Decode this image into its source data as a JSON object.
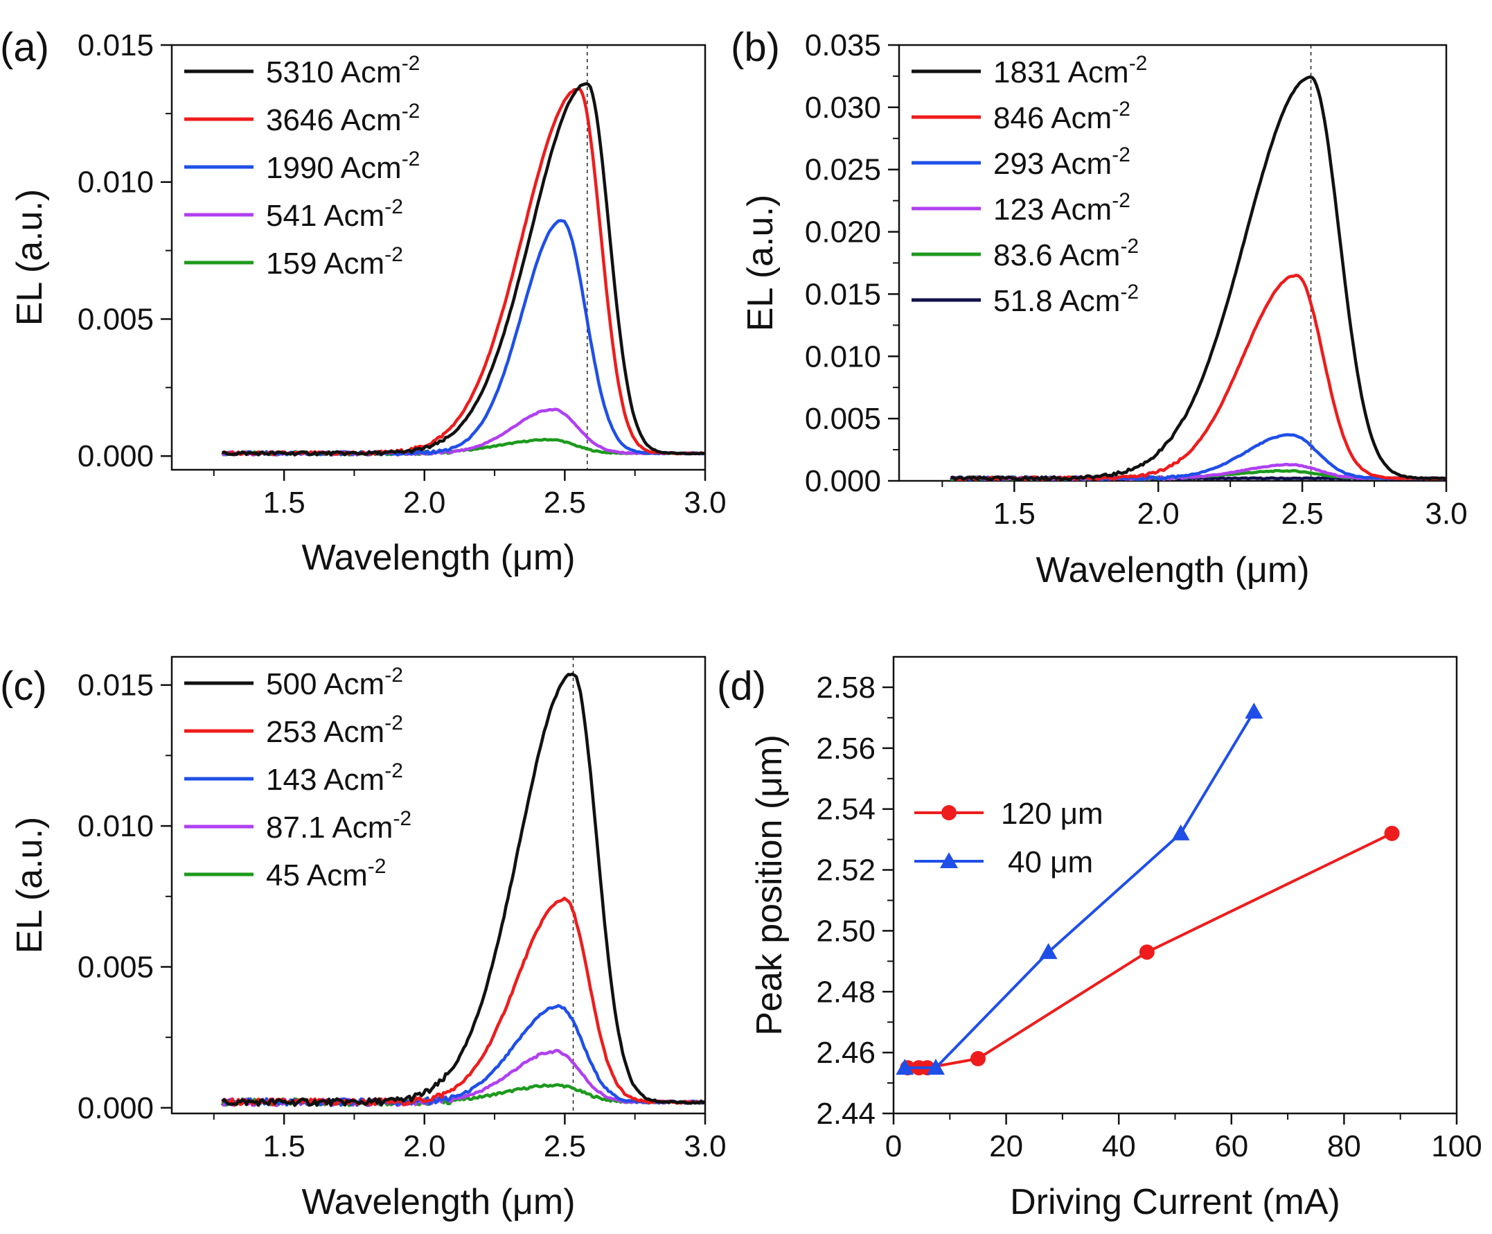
{
  "figure": {
    "colors": {
      "black": "#111111",
      "red": "#ee1c1c",
      "blue": "#1f4fe8",
      "magenta": "#b040f0",
      "green": "#1d9a1d",
      "navy": "#10104a"
    }
  },
  "chart_data": [
    {
      "panel": "(a)",
      "type": "line",
      "xlabel": "Wavelength (μm)",
      "ylabel": "EL (a.u.)",
      "xlim": [
        1.1,
        3.0
      ],
      "ylim": [
        -0.0005,
        0.015
      ],
      "xticks": [
        1.5,
        2.0,
        2.5,
        3.0
      ],
      "xtick_labels": [
        "1.5",
        "2.0",
        "2.5",
        "3.0"
      ],
      "yticks": [
        0.0,
        0.005,
        0.01,
        0.015
      ],
      "ytick_labels": [
        "0.000",
        "0.005",
        "0.010",
        "0.015"
      ],
      "peak_marker_x": 2.58,
      "legend_position": "top-left",
      "series": [
        {
          "name": "5310",
          "unit": " Acm",
          "exp": "-2",
          "color": "black",
          "peak": 0.0135,
          "center": 2.58,
          "wl": 0.28,
          "wr": 0.11,
          "base": 0.0001
        },
        {
          "name": "3646",
          "unit": " Acm",
          "exp": "-2",
          "color": "red",
          "peak": 0.0133,
          "center": 2.55,
          "wl": 0.28,
          "wr": 0.11,
          "base": 0.0001
        },
        {
          "name": "1990",
          "unit": " Acm",
          "exp": "-2",
          "color": "blue",
          "peak": 0.0085,
          "center": 2.49,
          "wl": 0.2,
          "wr": 0.12,
          "base": 0.0001
        },
        {
          "name": "541",
          "unit": " Acm",
          "exp": "-2",
          "color": "magenta",
          "peak": 0.0016,
          "center": 2.46,
          "wl": 0.2,
          "wr": 0.12,
          "base": 0.0001
        },
        {
          "name": "159",
          "unit": " Acm",
          "exp": "-2",
          "color": "green",
          "peak": 0.0005,
          "center": 2.45,
          "wl": 0.25,
          "wr": 0.12,
          "base": 0.0001
        }
      ]
    },
    {
      "panel": "(b)",
      "type": "line",
      "xlabel": "Wavelength (μm)",
      "ylabel": "EL (a.u.)",
      "xlim": [
        1.1,
        3.0
      ],
      "ylim": [
        0.0,
        0.035
      ],
      "xticks": [
        1.5,
        2.0,
        2.5,
        3.0
      ],
      "xtick_labels": [
        "1.5",
        "2.0",
        "2.5",
        "3.0"
      ],
      "yticks": [
        0.0,
        0.005,
        0.01,
        0.015,
        0.02,
        0.025,
        0.03,
        0.035
      ],
      "ytick_labels": [
        "0.000",
        "0.005",
        "0.010",
        "0.015",
        "0.020",
        "0.025",
        "0.030",
        "0.035"
      ],
      "peak_marker_x": 2.53,
      "legend_position": "top-left",
      "series": [
        {
          "name": "1831",
          "unit": " Acm",
          "exp": "-2",
          "color": "black",
          "peak": 0.0322,
          "center": 2.53,
          "wl": 0.32,
          "wr": 0.14,
          "base": 0.0002
        },
        {
          "name": "846",
          "unit": " Acm",
          "exp": "-2",
          "color": "red",
          "peak": 0.0163,
          "center": 2.48,
          "wl": 0.26,
          "wr": 0.13,
          "base": 0.0002
        },
        {
          "name": "293",
          "unit": " Acm",
          "exp": "-2",
          "color": "blue",
          "peak": 0.0035,
          "center": 2.46,
          "wl": 0.22,
          "wr": 0.13,
          "base": 0.0002
        },
        {
          "name": "123",
          "unit": " Acm",
          "exp": "-2",
          "color": "magenta",
          "peak": 0.0011,
          "center": 2.46,
          "wl": 0.22,
          "wr": 0.13,
          "base": 0.0002
        },
        {
          "name": "83.6",
          "unit": " Acm",
          "exp": "-2",
          "color": "green",
          "peak": 0.0006,
          "center": 2.45,
          "wl": 0.25,
          "wr": 0.14,
          "base": 0.0002
        },
        {
          "name": "51.8",
          "unit": " Acm",
          "exp": "-2",
          "color": "navy",
          "peak": 0.0,
          "center": 2.45,
          "wl": 0.25,
          "wr": 0.14,
          "base": 0.0002
        }
      ]
    },
    {
      "panel": "(c)",
      "type": "line",
      "xlabel": "Wavelength (μm)",
      "ylabel": "EL (a.u.)",
      "xlim": [
        1.1,
        3.0
      ],
      "ylim": [
        -0.0002,
        0.016
      ],
      "xticks": [
        1.5,
        2.0,
        2.5,
        3.0
      ],
      "xtick_labels": [
        "1.5",
        "2.0",
        "2.5",
        "3.0"
      ],
      "yticks": [
        0.0,
        0.005,
        0.01,
        0.015
      ],
      "ytick_labels": [
        "0.000",
        "0.005",
        "0.010",
        "0.015"
      ],
      "peak_marker_x": 2.53,
      "legend_position": "top-left",
      "series": [
        {
          "name": "500",
          "unit": " Acm",
          "exp": "-2",
          "color": "black",
          "peak": 0.0152,
          "center": 2.53,
          "wl": 0.27,
          "wr": 0.12,
          "base": 0.0002
        },
        {
          "name": "253",
          "unit": " Acm",
          "exp": "-2",
          "color": "red",
          "peak": 0.0072,
          "center": 2.5,
          "wl": 0.24,
          "wr": 0.12,
          "base": 0.0002
        },
        {
          "name": "143",
          "unit": " Acm",
          "exp": "-2",
          "color": "blue",
          "peak": 0.0034,
          "center": 2.48,
          "wl": 0.22,
          "wr": 0.12,
          "base": 0.0002
        },
        {
          "name": "87.1",
          "unit": " Acm",
          "exp": "-2",
          "color": "magenta",
          "peak": 0.0018,
          "center": 2.47,
          "wl": 0.22,
          "wr": 0.12,
          "base": 0.0002
        },
        {
          "name": "45",
          "unit": " Acm",
          "exp": "-2",
          "color": "green",
          "peak": 0.0006,
          "center": 2.47,
          "wl": 0.25,
          "wr": 0.13,
          "base": 0.0002
        }
      ]
    },
    {
      "panel": "(d)",
      "type": "line",
      "xlabel": "Driving Current (mA)",
      "ylabel": "Peak position (μm)",
      "xlim": [
        0,
        100
      ],
      "ylim": [
        2.44,
        2.59
      ],
      "xticks": [
        0,
        20,
        40,
        60,
        80,
        100
      ],
      "xtick_labels": [
        "0",
        "20",
        "40",
        "60",
        "80",
        "100"
      ],
      "yticks": [
        2.44,
        2.46,
        2.48,
        2.5,
        2.52,
        2.54,
        2.56,
        2.58
      ],
      "ytick_labels": [
        "2.44",
        "2.46",
        "2.48",
        "2.50",
        "2.52",
        "2.54",
        "2.56",
        "2.58"
      ],
      "legend_position": "center-left",
      "series": [
        {
          "name": "120 μm",
          "color": "red",
          "marker": "circle",
          "x": [
            2.5,
            4.5,
            6.0,
            15.0,
            45.0,
            88.5
          ],
          "y": [
            2.455,
            2.455,
            2.455,
            2.458,
            2.493,
            2.532
          ]
        },
        {
          "name": "40 μm",
          "color": "blue",
          "marker": "triangle",
          "x": [
            2.0,
            7.5,
            27.5,
            51.0,
            64.0
          ],
          "y": [
            2.455,
            2.455,
            2.493,
            2.532,
            2.572
          ]
        }
      ]
    }
  ]
}
